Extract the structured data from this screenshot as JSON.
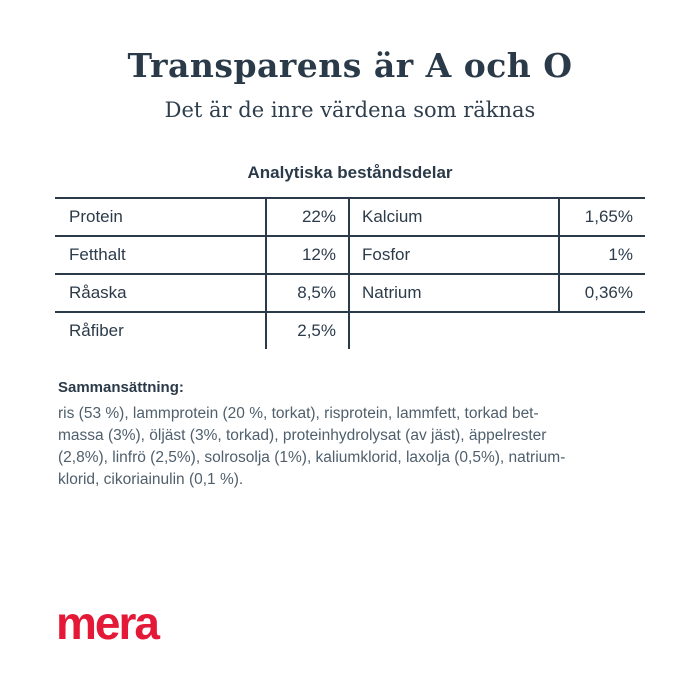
{
  "page": {
    "title": "Transparens är A och O",
    "subtitle": "Det är de inre värdena som räknas"
  },
  "table": {
    "title": "Analytiska beståndsdelar",
    "rows": [
      {
        "l1": "Protein",
        "v1": "22%",
        "l2": "Kalcium",
        "v2": "1,65%"
      },
      {
        "l1": "Fetthalt",
        "v1": "12%",
        "l2": "Fosfor",
        "v2": "1%"
      },
      {
        "l1": "Råaska",
        "v1": "8,5%",
        "l2": "Natrium",
        "v2": "0,36%"
      },
      {
        "l1": "Råfiber",
        "v1": "2,5%",
        "l2": "",
        "v2": ""
      }
    ]
  },
  "composition": {
    "heading": "Sammansättning:",
    "lines": [
      "ris (53 %), lammprotein (20 %, torkat), risprotein, lammfett, torkad bet-",
      "massa (3%), öljäst (3%, torkad), proteinhydrolysat (av jäst), äppelrester",
      "(2,8%), linfrö (2,5%), solrosolja (1%), kaliumklorid, laxolja (0,5%), natrium-",
      "klorid, cikoriainulin (0,1 %)."
    ],
    "full_text": "ris (53 %), lammprotein (20 %, torkat), risprotein, lammfett, torkad betmassa (3%), öljäst (3%, torkad), proteinhydrolysat (av jäst), äppelrester (2,8%), linfrö (2,5%), solrosolja (1%), kaliumklorid, laxolja (0,5%), natriumklorid, cikoriainulin (0,1 %)."
  },
  "logo": {
    "text": "mera"
  },
  "colors": {
    "navy": "#2b3a49",
    "body_text": "#4f5f6c",
    "brand_red": "#e41937",
    "background": "#ffffff"
  }
}
